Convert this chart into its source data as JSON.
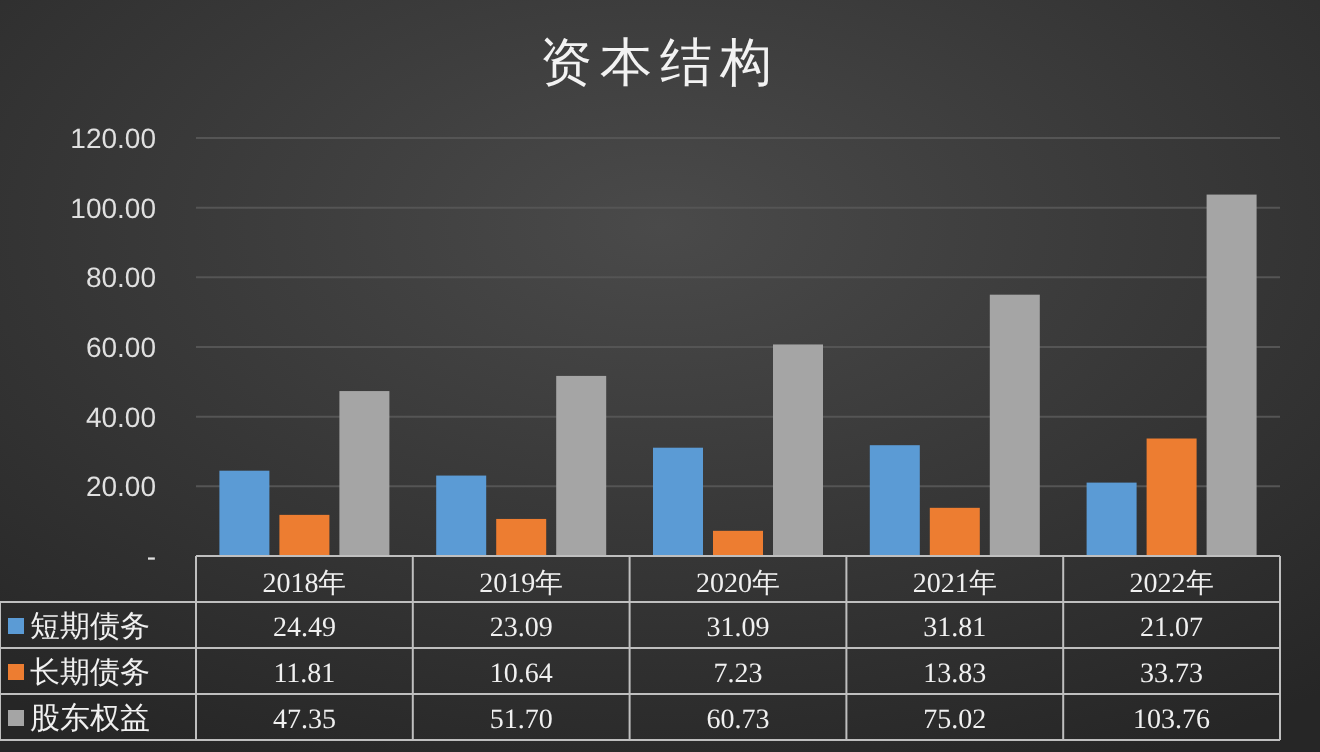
{
  "chart_data": {
    "type": "bar",
    "title": "资本结构",
    "categories": [
      "2018年",
      "2019年",
      "2020年",
      "2021年",
      "2022年"
    ],
    "series": [
      {
        "name": "短期债务",
        "color": "#5b9bd5",
        "values": [
          24.49,
          23.09,
          31.09,
          31.81,
          21.07
        ],
        "value_labels": [
          "24.49",
          "23.09",
          "31.09",
          "31.81",
          "21.07"
        ]
      },
      {
        "name": "长期债务",
        "color": "#ed7d31",
        "values": [
          11.81,
          10.64,
          7.23,
          13.83,
          33.73
        ],
        "value_labels": [
          "11.81",
          "10.64",
          "7.23",
          "13.83",
          "33.73"
        ]
      },
      {
        "name": "股东权益",
        "color": "#a5a5a5",
        "values": [
          47.35,
          51.7,
          60.73,
          75.02,
          103.76
        ],
        "value_labels": [
          "47.35",
          "51.70",
          "60.73",
          "75.02",
          "103.76"
        ]
      }
    ],
    "ylim": [
      0,
      120
    ],
    "yticks": [
      {
        "value": 0,
        "label": "-"
      },
      {
        "value": 20,
        "label": "20.00"
      },
      {
        "value": 40,
        "label": "40.00"
      },
      {
        "value": 60,
        "label": "60.00"
      },
      {
        "value": 80,
        "label": "80.00"
      },
      {
        "value": 100,
        "label": "100.00"
      },
      {
        "value": 120,
        "label": "120.00"
      }
    ],
    "grid": "y",
    "legend": "bottom left"
  }
}
